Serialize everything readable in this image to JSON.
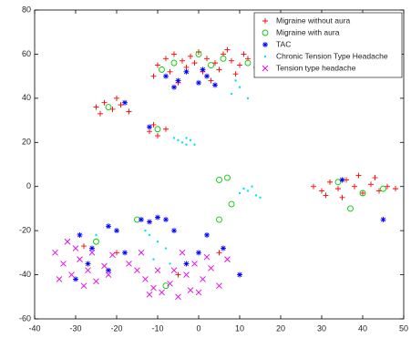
{
  "chart_data": {
    "type": "scatter",
    "xlim": [
      -40,
      50
    ],
    "ylim": [
      -60,
      80
    ],
    "xticks": [
      -40,
      -30,
      -20,
      -10,
      0,
      10,
      20,
      30,
      40,
      50
    ],
    "yticks": [
      -60,
      -40,
      -20,
      0,
      20,
      40,
      60,
      80
    ],
    "legend": "upper right",
    "series": [
      {
        "name": "Migraine without aura",
        "color": "#ff0000",
        "marker": "+",
        "x": [
          -10,
          -8,
          -6,
          -4,
          -2,
          0,
          2,
          4,
          6,
          8,
          10,
          12,
          14,
          -11,
          -7,
          -3,
          1,
          5,
          9,
          -5,
          3,
          7,
          -1,
          11,
          -25,
          -23,
          -21,
          -19,
          -17,
          -24,
          -20,
          -12,
          -10,
          -8,
          -11,
          28,
          30,
          32,
          34,
          36,
          38,
          40,
          42,
          44,
          46,
          48,
          35,
          39,
          43,
          31,
          -28,
          -20,
          -5,
          5
        ],
        "y": [
          55,
          58,
          60,
          57,
          59,
          61,
          58,
          56,
          60,
          57,
          55,
          58,
          54,
          50,
          52,
          54,
          52,
          53,
          51,
          47,
          48,
          62,
          56,
          60,
          36,
          38,
          35,
          37,
          34,
          33,
          40,
          25,
          23,
          26,
          28,
          0,
          -2,
          2,
          -1,
          3,
          0,
          -3,
          1,
          -2,
          0,
          -1,
          -5,
          5,
          4,
          -4,
          -27,
          -30,
          -40,
          -30
        ]
      },
      {
        "name": "Migraine with aura",
        "color": "#00cc00",
        "marker": "o",
        "x": [
          -6,
          0,
          6,
          12,
          -9,
          3,
          -22,
          -10,
          7,
          5,
          34,
          40,
          45,
          37,
          8,
          -25,
          -15,
          5,
          -8
        ],
        "y": [
          56,
          60,
          58,
          56,
          53,
          55,
          36,
          26,
          4,
          3,
          2,
          -3,
          -1,
          -10,
          -8,
          -25,
          -15,
          -15,
          -45
        ]
      },
      {
        "name": "TAC",
        "color": "#0000ff",
        "marker": "*",
        "x": [
          -8,
          -5,
          -3,
          0,
          2,
          4,
          -6,
          1,
          -12,
          -18,
          -14,
          -12,
          -10,
          -8,
          -20,
          -26,
          -29,
          -27,
          -22,
          -30,
          -18,
          -6,
          -3,
          2,
          0,
          6,
          10,
          45,
          35,
          -22
        ],
        "y": [
          50,
          48,
          52,
          47,
          50,
          46,
          45,
          53,
          27,
          38,
          -15,
          -16,
          -14,
          -15,
          -20,
          -28,
          -22,
          -35,
          -38,
          -42,
          -30,
          -20,
          -35,
          -22,
          -30,
          -28,
          -40,
          -15,
          3,
          -18
        ]
      },
      {
        "name": "Chronic Tension Type Headache",
        "color": "#00e5ee",
        "marker": ".",
        "x": [
          -5,
          -4,
          -3,
          -2,
          -1,
          -6,
          -3,
          10,
          12,
          14,
          13,
          11,
          15,
          8,
          10,
          12,
          9,
          -12,
          -10,
          -14,
          -8,
          -11,
          -13,
          -7,
          -25
        ],
        "y": [
          21,
          20,
          22,
          21,
          19,
          22,
          19,
          -3,
          -2,
          -4,
          0,
          -1,
          -5,
          42,
          45,
          40,
          48,
          -22,
          -25,
          -30,
          -28,
          -33,
          -20,
          -35,
          -22
        ]
      },
      {
        "name": "Tension type headache",
        "color": "#e600e6",
        "marker": "x",
        "x": [
          -35,
          -33,
          -31,
          -29,
          -27,
          -25,
          -23,
          -21,
          -34,
          -30,
          -26,
          -22,
          -32,
          -28,
          -15,
          -13,
          -11,
          -9,
          -7,
          -5,
          -3,
          -1,
          1,
          3,
          5,
          7,
          -14,
          -10,
          -6,
          -2,
          2,
          -17,
          -4,
          0,
          -12
        ],
        "y": [
          -30,
          -35,
          -40,
          -33,
          -38,
          -43,
          -36,
          -31,
          -42,
          -28,
          -30,
          -40,
          -25,
          -45,
          -38,
          -42,
          -46,
          -48,
          -44,
          -50,
          -40,
          -35,
          -42,
          -37,
          -45,
          -33,
          -30,
          -38,
          -38,
          -47,
          -32,
          -35,
          -30,
          -48,
          -49
        ]
      }
    ]
  }
}
